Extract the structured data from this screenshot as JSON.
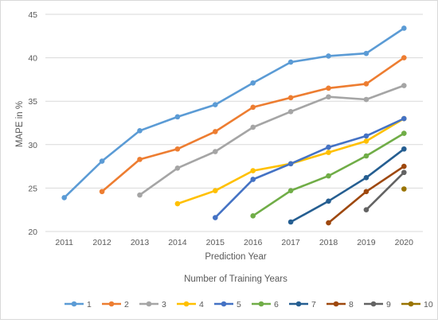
{
  "chart_data": {
    "type": "line",
    "title": "",
    "xlabel": "Prediction Year",
    "ylabel": "MAPE in %",
    "legend_title": "Number of Training Years",
    "legend_position": "bottom",
    "grid": true,
    "ylim": [
      20,
      45
    ],
    "yticks": [
      20,
      25,
      30,
      35,
      40,
      45
    ],
    "x": [
      "2011",
      "2012",
      "2013",
      "2014",
      "2015",
      "2016",
      "2017",
      "2018",
      "2019",
      "2020"
    ],
    "series": [
      {
        "name": "1",
        "color": "#5B9BD5",
        "values": [
          23.9,
          28.1,
          31.6,
          33.2,
          34.6,
          37.1,
          39.5,
          40.2,
          40.5,
          43.4
        ]
      },
      {
        "name": "2",
        "color": "#ED7D31",
        "values": [
          null,
          24.6,
          28.3,
          29.5,
          31.5,
          34.3,
          35.4,
          36.5,
          37.0,
          40.0
        ]
      },
      {
        "name": "3",
        "color": "#A5A5A5",
        "values": [
          null,
          null,
          24.2,
          27.3,
          29.2,
          32.0,
          33.8,
          35.5,
          35.2,
          36.8
        ]
      },
      {
        "name": "4",
        "color": "#FFC000",
        "values": [
          null,
          null,
          null,
          23.2,
          24.7,
          27.0,
          27.8,
          29.1,
          30.4,
          33.0
        ]
      },
      {
        "name": "5",
        "color": "#4472C4",
        "values": [
          null,
          null,
          null,
          null,
          21.6,
          26.0,
          27.8,
          29.7,
          31.0,
          33.0
        ]
      },
      {
        "name": "6",
        "color": "#70AD47",
        "values": [
          null,
          null,
          null,
          null,
          null,
          21.8,
          24.7,
          26.4,
          28.7,
          31.3
        ]
      },
      {
        "name": "7",
        "color": "#255E91",
        "values": [
          null,
          null,
          null,
          null,
          null,
          null,
          21.1,
          23.5,
          26.2,
          29.5
        ]
      },
      {
        "name": "8",
        "color": "#9E480E",
        "values": [
          null,
          null,
          null,
          null,
          null,
          null,
          null,
          21.0,
          24.6,
          27.5
        ]
      },
      {
        "name": "9",
        "color": "#636363",
        "values": [
          null,
          null,
          null,
          null,
          null,
          null,
          null,
          null,
          22.5,
          26.8
        ]
      },
      {
        "name": "10",
        "color": "#997300",
        "values": [
          null,
          null,
          null,
          null,
          null,
          null,
          null,
          null,
          null,
          24.9
        ]
      }
    ]
  }
}
